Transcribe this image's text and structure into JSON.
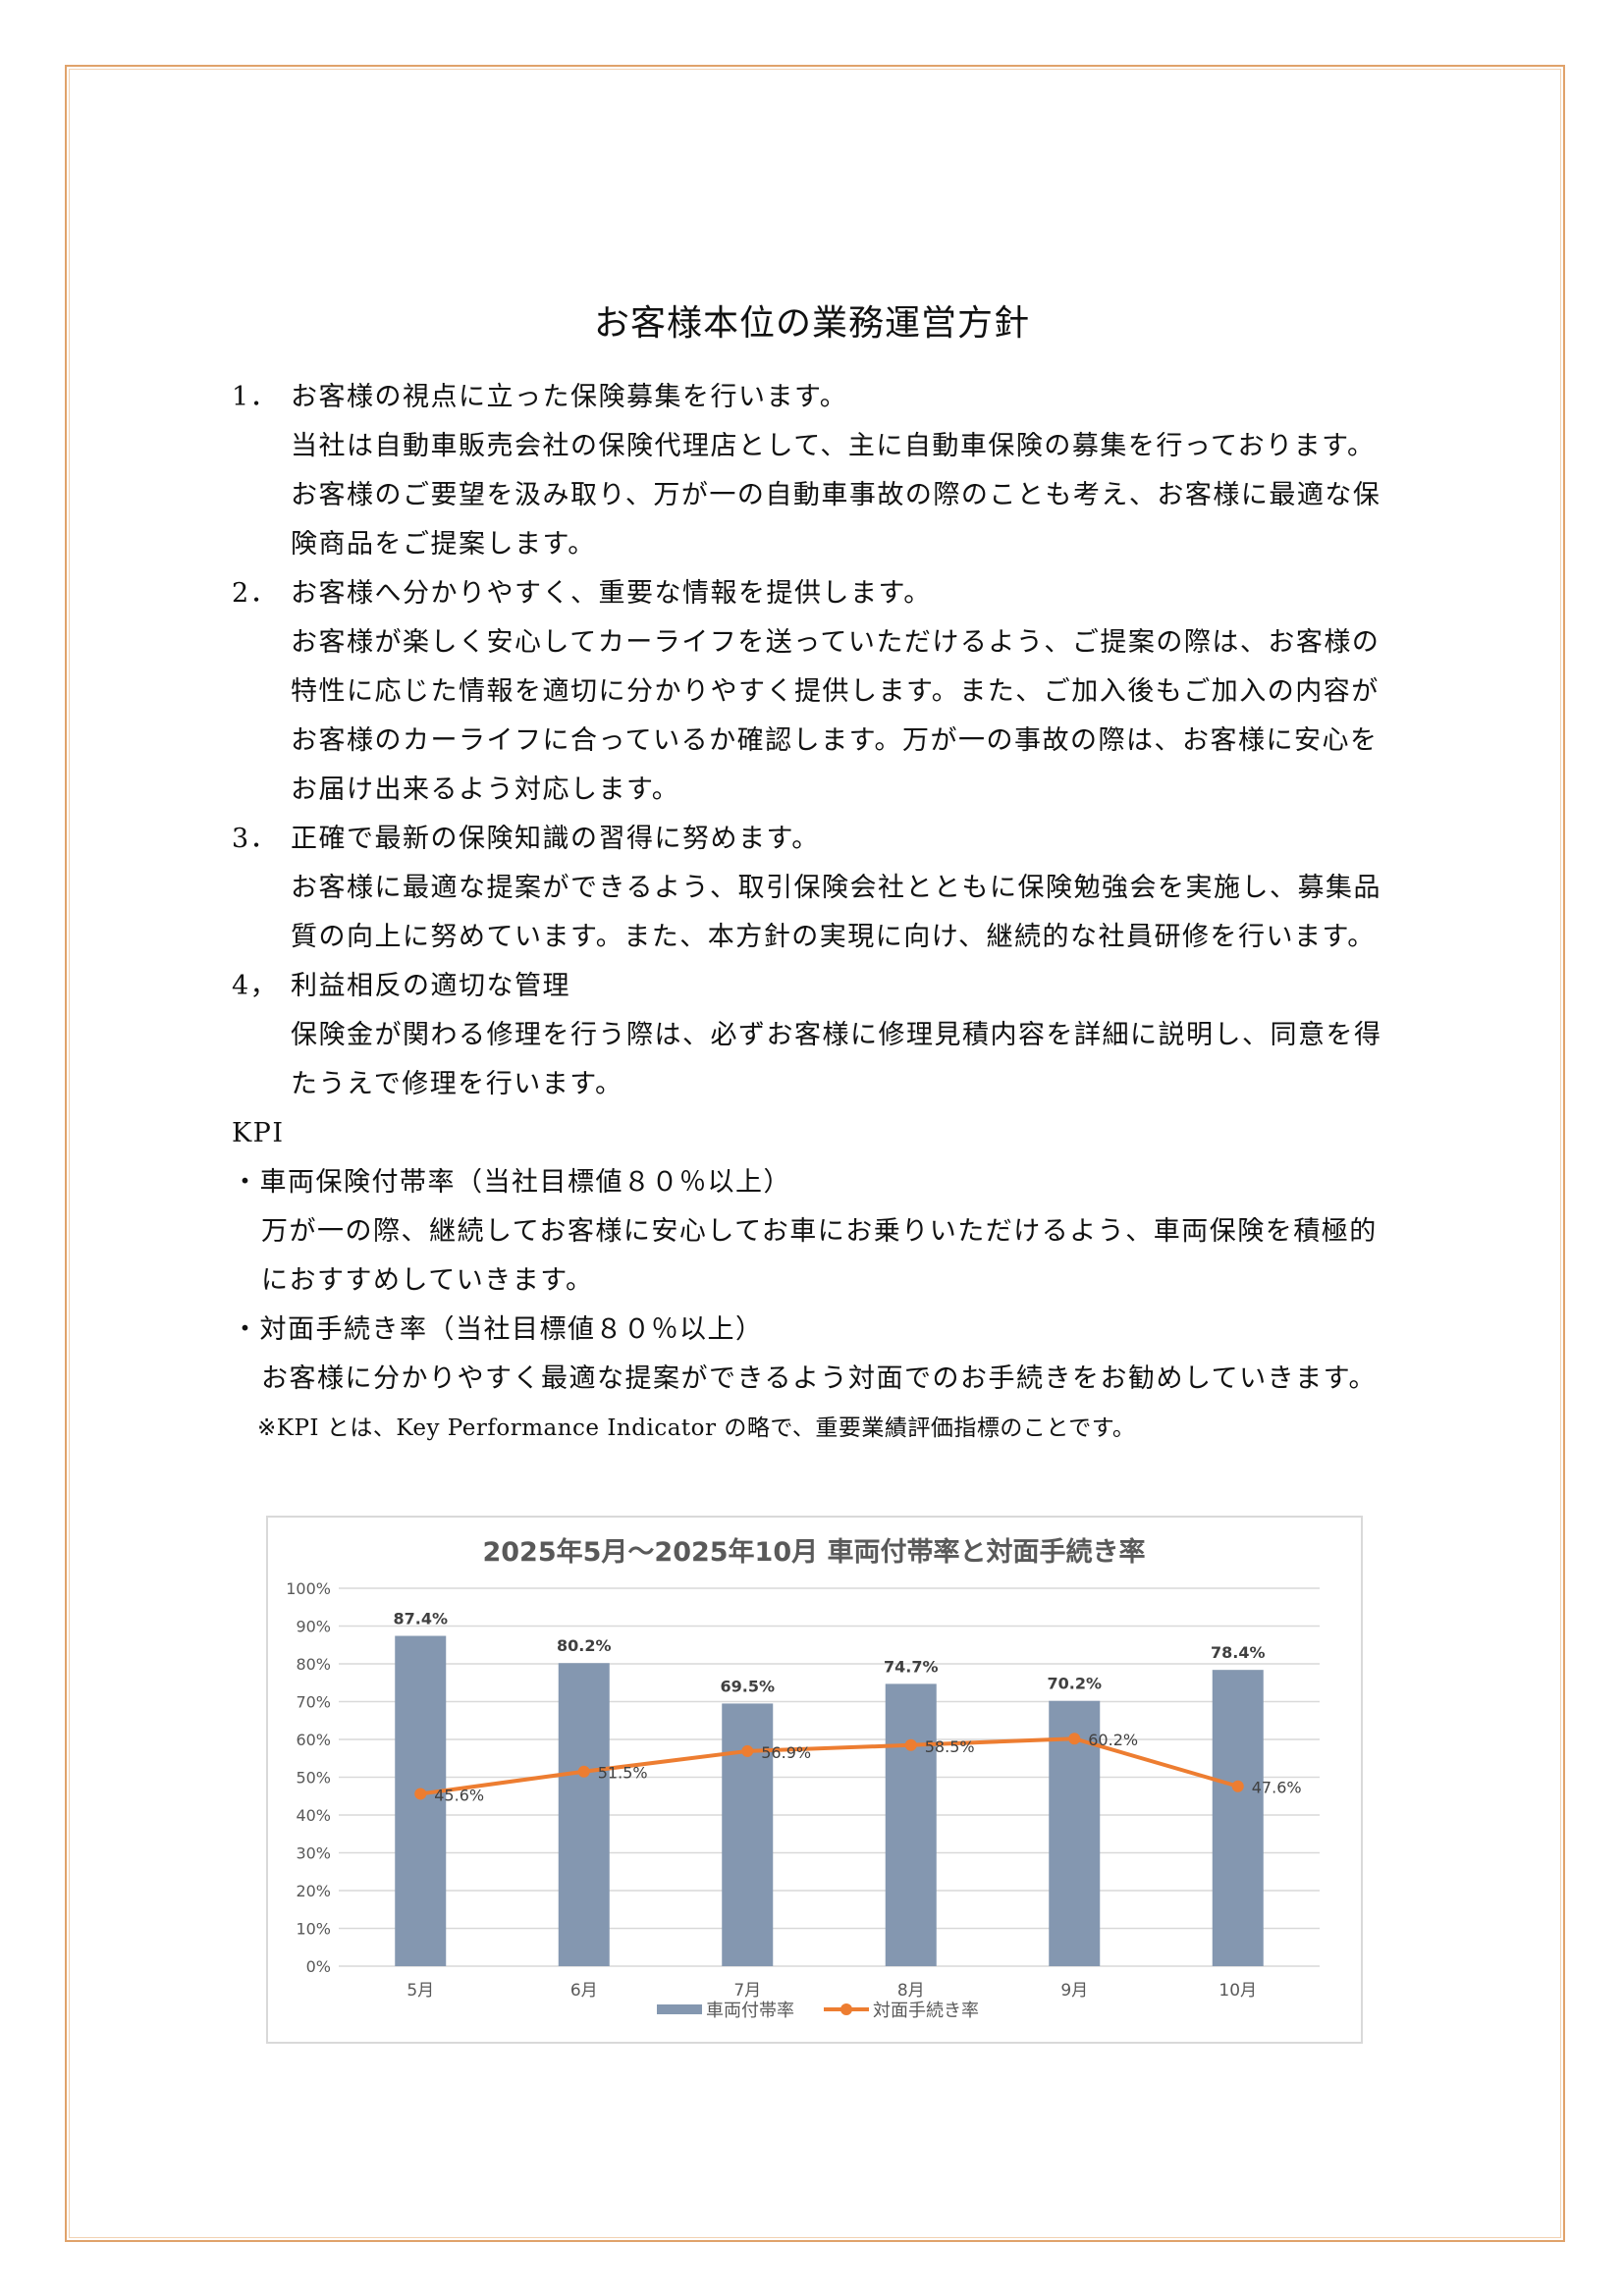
{
  "document": {
    "title": "お客様本位の業務運営方針",
    "sections": [
      {
        "number": "1．",
        "heading": "お客様の視点に立った保険募集を行います。",
        "lines": [
          "当社は自動車販売会社の保険代理店として、主に自動車保険の募集を行っております。",
          "お客様のご要望を汲み取り、万が一の自動車事故の際のことも考え、お客様に最適な保",
          "険商品をご提案します。"
        ]
      },
      {
        "number": "2．",
        "heading": "お客様へ分かりやすく、重要な情報を提供します。",
        "lines": [
          "お客様が楽しく安心してカーライフを送っていただけるよう、ご提案の際は、お客様の",
          "特性に応じた情報を適切に分かりやすく提供します。また、ご加入後もご加入の内容が",
          "お客様のカーライフに合っているか確認します。万が一の事故の際は、お客様に安心を",
          "お届け出来るよう対応します。"
        ]
      },
      {
        "number": "3．",
        "heading": "正確で最新の保険知識の習得に努めます。",
        "lines": [
          "お客様に最適な提案ができるよう、取引保険会社とともに保険勉強会を実施し、募集品",
          "質の向上に努めています。また、本方針の実現に向け、継続的な社員研修を行います。"
        ]
      },
      {
        "number": "4，",
        "heading": "利益相反の適切な管理",
        "lines": [
          "保険金が関わる修理を行う際は、必ずお客様に修理見積内容を詳細に説明し、同意を得",
          "たうえで修理を行います。"
        ]
      }
    ],
    "kpi": {
      "heading": "KPI",
      "items": [
        {
          "title": "・車両保険付帯率（当社目標値８０％以上）",
          "lines": [
            "万が一の際、継続してお客様に安心してお車にお乗りいただけるよう、車両保険を積極的",
            "におすすめしていきます。"
          ]
        },
        {
          "title": "・対面手続き率（当社目標値８０％以上）",
          "lines": [
            "お客様に分かりやすく最適な提案ができるよう対面でのお手続きをお勧めしていきます。"
          ]
        }
      ],
      "note": "※KPI とは、Key Performance Indicator の略で、重要業績評価指標のことです。"
    }
  },
  "chart_data": {
    "type": "bar+line",
    "title": "2025年5月～2025年10月 車両付帯率と対面手続き率",
    "categories": [
      "5月",
      "6月",
      "7月",
      "8月",
      "9月",
      "10月"
    ],
    "ylim": [
      0,
      100
    ],
    "yticks": [
      "0%",
      "10%",
      "20%",
      "30%",
      "40%",
      "50%",
      "60%",
      "70%",
      "80%",
      "90%",
      "100%"
    ],
    "grid": true,
    "legend_position": "bottom",
    "series": [
      {
        "name": "車両付帯率",
        "kind": "bar",
        "color": "#8497b0",
        "values": [
          87.4,
          80.2,
          69.5,
          74.7,
          70.2,
          78.4
        ],
        "labels": [
          "87.4%",
          "80.2%",
          "69.5%",
          "74.7%",
          "70.2%",
          "78.4%"
        ]
      },
      {
        "name": "対面手続き率",
        "kind": "line",
        "color": "#ed7d31",
        "values": [
          45.6,
          51.5,
          56.9,
          58.5,
          60.2,
          47.6
        ],
        "labels": [
          "45.6%",
          "51.5%",
          "56.9%",
          "58.5%",
          "60.2%",
          "47.6%"
        ]
      }
    ]
  }
}
